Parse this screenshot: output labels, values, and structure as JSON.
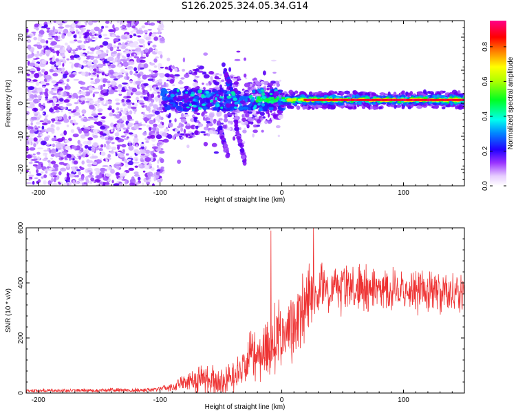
{
  "title": "S126.2025.324.05.34.G14",
  "chart_data": [
    {
      "type": "heatmap",
      "name": "spectrogram",
      "title": "S126.2025.324.05.34.G14",
      "xlabel": "Height of straight line (km)",
      "ylabel": "Frequency (Hz)",
      "xlim": [
        -210,
        150
      ],
      "ylim": [
        -25,
        25
      ],
      "xticks": [
        -200,
        -100,
        0,
        100
      ],
      "yticks": [
        -20,
        -10,
        0,
        10,
        20
      ],
      "xtick_labels": [
        "-200",
        "-100",
        "0",
        "100"
      ],
      "ytick_labels": [
        "-20",
        "-10",
        "0",
        "10",
        "20"
      ],
      "colorbar": {
        "label": "Normalized spectral amplitude",
        "range": [
          0.0,
          0.95
        ],
        "ticks": [
          0.0,
          0.2,
          0.4,
          0.6,
          0.8
        ],
        "tick_labels": [
          "0.0",
          "0.2",
          "0.4",
          "0.6",
          "0.8"
        ],
        "colors": [
          "#ffffff",
          "#cc99ff",
          "#7f00ff",
          "#0000ff",
          "#00ccff",
          "#00ff00",
          "#ffff00",
          "#ff0000",
          "#ff0099"
        ]
      },
      "features": [
        {
          "region": "noise",
          "x_range": [
            -210,
            -100
          ],
          "freq_range": [
            -25,
            25
          ],
          "amplitude": "0.0-0.2"
        },
        {
          "region": "signal_line",
          "x_range": [
            0,
            150
          ],
          "freq": 1.0,
          "amplitude": 0.9
        },
        {
          "region": "transition",
          "x_range": [
            -100,
            0
          ],
          "freq_range": [
            -18,
            12
          ],
          "amplitude": "0.1-0.5"
        }
      ]
    },
    {
      "type": "line",
      "name": "snr",
      "xlabel": "Height of straight line (km)",
      "ylabel": "SNR (10 * v/v)",
      "xlim": [
        -210,
        150
      ],
      "ylim": [
        0,
        600
      ],
      "xticks": [
        -200,
        -100,
        0,
        100
      ],
      "yticks": [
        0,
        200,
        400,
        600
      ],
      "xtick_labels": [
        "-200",
        "-100",
        "0",
        "100"
      ],
      "ytick_labels": [
        "0",
        "200",
        "400",
        "600"
      ],
      "color": "#ee3333",
      "envelope": {
        "x": [
          -210,
          -150,
          -110,
          -100,
          -90,
          -80,
          -70,
          -60,
          -50,
          -40,
          -30,
          -20,
          -10,
          0,
          10,
          20,
          30,
          40,
          50,
          60,
          80,
          100,
          120,
          150
        ],
        "mean": [
          8,
          10,
          11,
          14,
          22,
          40,
          50,
          50,
          42,
          55,
          110,
          150,
          170,
          210,
          250,
          310,
          370,
          385,
          385,
          380,
          375,
          370,
          365,
          370
        ],
        "spread": [
          7,
          9,
          10,
          10,
          20,
          35,
          60,
          70,
          60,
          70,
          110,
          130,
          150,
          160,
          170,
          170,
          120,
          110,
          110,
          100,
          95,
          95,
          90,
          90
        ]
      },
      "peaks": [
        {
          "x": -9,
          "y": 590
        },
        {
          "x": 26,
          "y": 600
        }
      ]
    }
  ]
}
